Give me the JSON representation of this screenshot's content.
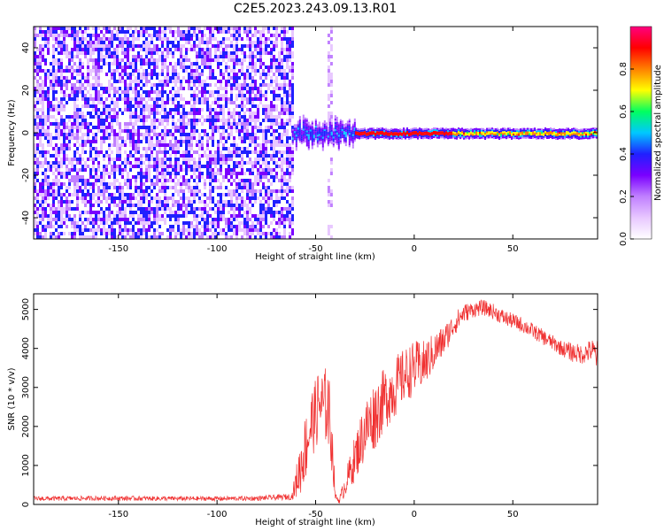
{
  "title": "C2E5.2023.243.09.13.R01",
  "chart_data": [
    {
      "type": "heatmap",
      "xlabel": "Height of straight line (km)",
      "ylabel": "Frequency (Hz)",
      "xlim": [
        -193,
        93
      ],
      "ylim": [
        -50,
        50
      ],
      "xticks": [
        -150,
        -100,
        -50,
        0,
        50
      ],
      "yticks": [
        -40,
        -20,
        0,
        20,
        40
      ],
      "xtick_labels": [
        "-150",
        "-100",
        "-50",
        "0",
        "50"
      ],
      "ytick_labels": [
        "-40",
        "-20",
        "0",
        "20",
        "40"
      ],
      "grid": false,
      "colorbar": {
        "label": "Normalized spectral amplitude",
        "range": [
          0,
          1
        ],
        "ticks": [
          0.0,
          0.2,
          0.4,
          0.6,
          0.8
        ],
        "tick_labels": [
          "0.0",
          "0.2",
          "0.4",
          "0.6",
          "0.8"
        ],
        "colormap": [
          "#ffffff",
          "#e8c8ff",
          "#c080ff",
          "#7a00ff",
          "#2020ff",
          "#00c8ff",
          "#00ff60",
          "#ffff00",
          "#ff8000",
          "#ff0000",
          "#ff0080"
        ]
      },
      "regions": [
        {
          "kind": "noise",
          "x": [
            -193,
            -62
          ],
          "y": [
            -50,
            50
          ],
          "level": 0.3
        },
        {
          "kind": "noise_strip",
          "x": [
            -44,
            -42
          ],
          "y": [
            -50,
            50
          ],
          "level": 0.12
        },
        {
          "kind": "carrier_turbulent",
          "x": [
            -62,
            -30
          ],
          "y_center": 0,
          "level": 0.45
        },
        {
          "kind": "carrier",
          "x": [
            -30,
            93
          ],
          "y_center": 0,
          "level": 0.85
        }
      ]
    },
    {
      "type": "line",
      "xlabel": "Height of straight line (km)",
      "ylabel": "SNR (10 * v/v)",
      "xlim": [
        -193,
        93
      ],
      "ylim": [
        0,
        5400
      ],
      "xticks": [
        -150,
        -100,
        -50,
        0,
        50
      ],
      "yticks": [
        0,
        1000,
        2000,
        3000,
        4000,
        5000
      ],
      "xtick_labels": [
        "-150",
        "-100",
        "-50",
        "0",
        "50"
      ],
      "ytick_labels": [
        "0",
        "1000",
        "2000",
        "3000",
        "4000",
        "5000"
      ],
      "grid": false,
      "series": [
        {
          "color": "#f03030",
          "x": [
            -193,
            -180,
            -160,
            -140,
            -120,
            -100,
            -80,
            -62,
            -58,
            -55,
            -52,
            -50,
            -48,
            -46,
            -44,
            -42,
            -40,
            -38,
            -35,
            -30,
            -25,
            -20,
            -15,
            -10,
            -5,
            0,
            5,
            10,
            15,
            20,
            25,
            30,
            35,
            40,
            45,
            50,
            55,
            60,
            65,
            70,
            75,
            80,
            85,
            90,
            93
          ],
          "y": [
            150,
            150,
            160,
            155,
            150,
            150,
            155,
            200,
            900,
            1500,
            2100,
            2300,
            2600,
            2500,
            2600,
            1800,
            200,
            100,
            500,
            1200,
            1900,
            2300,
            2700,
            3000,
            3300,
            3500,
            3600,
            3900,
            4200,
            4600,
            4900,
            5000,
            5050,
            4950,
            4800,
            4700,
            4600,
            4450,
            4300,
            4150,
            4000,
            3900,
            3850,
            3950,
            3800
          ],
          "jitter": [
            60,
            60,
            60,
            60,
            60,
            60,
            60,
            80,
            700,
            900,
            900,
            900,
            1000,
            900,
            1100,
            900,
            80,
            80,
            300,
            600,
            800,
            900,
            800,
            800,
            700,
            700,
            600,
            500,
            400,
            300,
            250,
            200,
            200,
            200,
            200,
            200,
            200,
            200,
            200,
            200,
            200,
            250,
            250,
            300,
            400
          ]
        }
      ]
    }
  ]
}
